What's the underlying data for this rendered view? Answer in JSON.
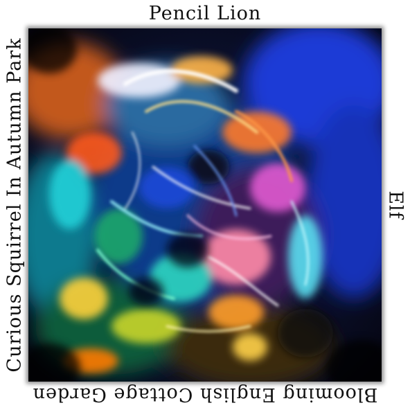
{
  "labels": {
    "top": "Pencil Lion",
    "bottom": "Blooming English Cottage Garden",
    "left": "Curious Squirrel In Autumn Park",
    "right": "Elf"
  },
  "image": {
    "description_icon": "abstract-swirl-image"
  },
  "colors": {
    "background": "#ffffff",
    "text": "#111111"
  }
}
